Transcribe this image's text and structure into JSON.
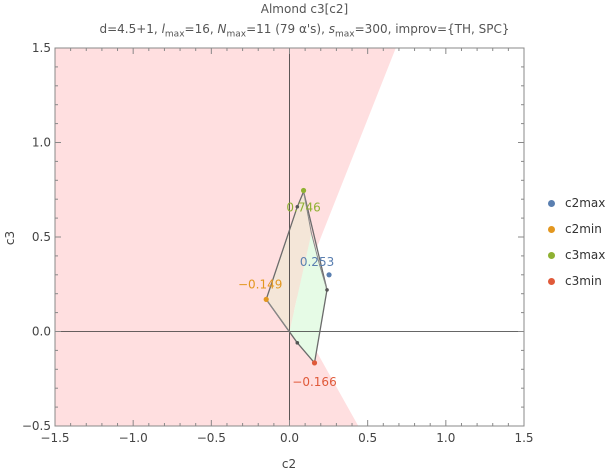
{
  "chart_data": {
    "type": "scatter",
    "title": "Almond c3[c2]",
    "subtitle": {
      "pre": "d=4.5+1, ",
      "l_sym": "l",
      "l_sub": "max",
      "l_val": "=16, ",
      "n_sym": "N",
      "n_sub": "max",
      "n_val": "=11 (79 α's), ",
      "s_sym": "s",
      "s_sub": "max",
      "s_val": "=300, improv={TH, SPC}"
    },
    "xlabel": "c2",
    "ylabel": "c3",
    "xlim": [
      -1.5,
      1.5
    ],
    "ylim": [
      -0.5,
      1.5
    ],
    "xticks": [
      -1.5,
      -1.0,
      -0.5,
      0.0,
      0.5,
      1.0,
      1.5
    ],
    "xtick_labels": [
      "−1.5",
      "−1.0",
      "−0.5",
      "0.0",
      "0.5",
      "1.0",
      "1.5"
    ],
    "yticks": [
      -0.5,
      0.0,
      0.5,
      1.0,
      1.5
    ],
    "ytick_labels": [
      "−0.5",
      "0.0",
      "0.5",
      "1.0",
      "1.5"
    ],
    "grid": false,
    "legend_position": "right",
    "excluded_region": {
      "color": "#ffdfe0",
      "polygon": [
        [
          -1.5,
          -0.5
        ],
        [
          0.44,
          -0.5
        ],
        [
          0.02,
          0.12
        ],
        [
          0.68,
          1.5
        ],
        [
          -1.5,
          1.5
        ]
      ]
    },
    "region_outline": [
      [
        0.09,
        0.74
      ],
      [
        0.24,
        0.22
      ],
      [
        0.16,
        -0.166
      ],
      [
        0.05,
        -0.06
      ],
      [
        -0.149,
        0.17
      ],
      [
        0.05,
        0.66
      ]
    ],
    "shaded_regions": [
      {
        "color": "#f4e6d8",
        "polygon": [
          [
            0.09,
            0.74
          ],
          [
            0.14,
            0.52
          ],
          [
            0.0,
            0.0
          ],
          [
            -0.149,
            0.17
          ],
          [
            0.05,
            0.66
          ]
        ]
      },
      {
        "color": "#e6fbe6",
        "polygon": [
          [
            0.14,
            0.52
          ],
          [
            0.24,
            0.22
          ],
          [
            0.16,
            -0.166
          ],
          [
            0.05,
            -0.06
          ],
          [
            0.0,
            0.0
          ]
        ]
      }
    ],
    "inner_lines": [
      [
        [
          0.09,
          0.74
        ],
        [
          0.14,
          0.52
        ],
        [
          0.19,
          0.36
        ],
        [
          0.24,
          0.22
        ]
      ],
      [
        [
          -0.149,
          0.17
        ],
        [
          0.0,
          0.0
        ]
      ]
    ],
    "vertices": [
      [
        0.05,
        0.66
      ],
      [
        0.24,
        0.22
      ],
      [
        0.05,
        -0.06
      ]
    ],
    "series": [
      {
        "name": "c2max",
        "color": "#5a7fb0",
        "x": 0.253,
        "y": 0.3,
        "label": "0.253",
        "label_dx": -12,
        "label_dy": -9
      },
      {
        "name": "c2min",
        "color": "#e3971f",
        "x": -0.149,
        "y": 0.17,
        "label": "−0.149",
        "label_dx": -6,
        "label_dy": -11
      },
      {
        "name": "c3max",
        "color": "#8fb132",
        "x": 0.09,
        "y": 0.746,
        "label": "0.746",
        "label_dx": 0,
        "label_dy": 21
      },
      {
        "name": "c3min",
        "color": "#e05a3a",
        "x": 0.16,
        "y": -0.166,
        "label": "−0.166",
        "label_dx": 0,
        "label_dy": 23
      }
    ]
  }
}
